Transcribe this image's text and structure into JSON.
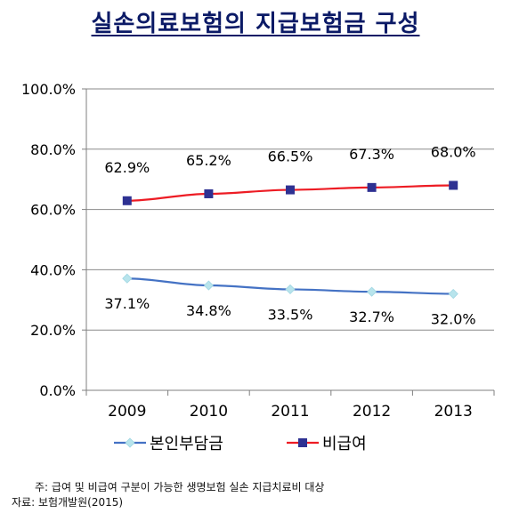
{
  "chart_data": {
    "type": "line",
    "title": "실손의료보험의 지급보험금 구성",
    "categories": [
      "2009",
      "2010",
      "2011",
      "2012",
      "2013"
    ],
    "y_ticks": [
      "100.0%",
      "80.0%",
      "60.0%",
      "40.0%",
      "20.0%",
      "0.0%"
    ],
    "ylim": [
      0,
      100
    ],
    "grid": true,
    "legend_position": "bottom",
    "series": [
      {
        "name": "본인부담금",
        "values": [
          37.1,
          34.8,
          33.5,
          32.7,
          32.0
        ],
        "labels": [
          "37.1%",
          "34.8%",
          "33.5%",
          "32.7%",
          "32.0%"
        ],
        "color": "#4472c4",
        "marker_color": "#b8e4ec",
        "marker": "diamond",
        "label_position": "below"
      },
      {
        "name": "비급여",
        "values": [
          62.9,
          65.2,
          66.5,
          67.3,
          68.0
        ],
        "labels": [
          "62.9%",
          "65.2%",
          "66.5%",
          "67.3%",
          "68.0%"
        ],
        "color": "#ed1c24",
        "marker_color": "#2e3192",
        "marker": "square",
        "label_position": "above"
      }
    ]
  },
  "notes": {
    "line1": "주: 급여 및 비급여 구분이 가능한 생명보험 실손 지급치료비 대상",
    "line2": "자료: 보험개발원(2015)"
  }
}
